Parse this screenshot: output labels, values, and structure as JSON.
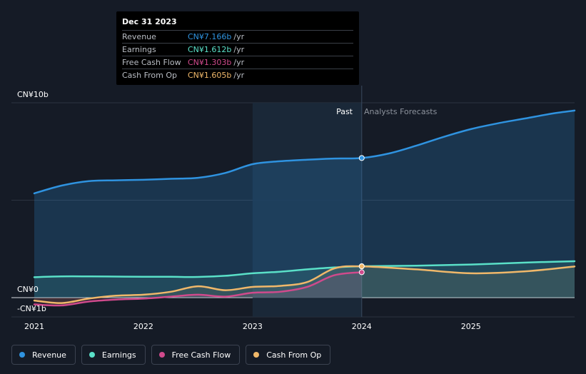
{
  "chart_data": {
    "type": "line",
    "y_unit_label_top": "CN¥10b",
    "y_unit_label_zero": "CN¥0",
    "y_unit_label_neg": "-CN¥1b",
    "ylim": [
      -1,
      10
    ],
    "xlim": [
      2021.0,
      2025.95
    ],
    "x_ticks": [
      {
        "value": 2021,
        "label": "2021"
      },
      {
        "value": 2022,
        "label": "2022"
      },
      {
        "value": 2023,
        "label": "2023"
      },
      {
        "value": 2024,
        "label": "2024"
      },
      {
        "value": 2025,
        "label": "2025"
      }
    ],
    "past_label": "Past",
    "forecast_label": "Analysts Forecasts",
    "divider_x": 2024.0,
    "highlight_start_x": 2023.0,
    "series": [
      {
        "name": "Revenue",
        "color": "#2f93e0",
        "x": [
          2021.0,
          2021.25,
          2021.5,
          2021.75,
          2022.0,
          2022.25,
          2022.5,
          2022.75,
          2023.0,
          2023.25,
          2023.5,
          2023.75,
          2024.0,
          2024.25,
          2024.5,
          2024.75,
          2025.0,
          2025.25,
          2025.5,
          2025.75,
          2025.95
        ],
        "values": [
          5.35,
          5.75,
          5.98,
          6.02,
          6.05,
          6.1,
          6.15,
          6.4,
          6.85,
          7.0,
          7.08,
          7.14,
          7.166,
          7.4,
          7.8,
          8.25,
          8.65,
          8.95,
          9.2,
          9.45,
          9.6
        ]
      },
      {
        "name": "Earnings",
        "color": "#5ae0c8",
        "x": [
          2021.0,
          2021.25,
          2021.5,
          2021.75,
          2022.0,
          2022.25,
          2022.5,
          2022.75,
          2023.0,
          2023.25,
          2023.5,
          2023.75,
          2024.0,
          2024.5,
          2025.0,
          2025.5,
          2025.95
        ],
        "values": [
          1.05,
          1.09,
          1.09,
          1.08,
          1.07,
          1.07,
          1.06,
          1.12,
          1.25,
          1.33,
          1.45,
          1.55,
          1.612,
          1.64,
          1.7,
          1.8,
          1.87
        ]
      },
      {
        "name": "Free Cash Flow",
        "color": "#d04a8c",
        "x": [
          2021.0,
          2021.25,
          2021.5,
          2021.75,
          2022.0,
          2022.25,
          2022.5,
          2022.75,
          2023.0,
          2023.25,
          2023.5,
          2023.75,
          2024.0
        ],
        "values": [
          -0.35,
          -0.4,
          -0.2,
          -0.1,
          -0.05,
          0.05,
          0.15,
          0.05,
          0.25,
          0.3,
          0.55,
          1.15,
          1.303
        ]
      },
      {
        "name": "Cash From Op",
        "color": "#f0b86a",
        "x": [
          2021.0,
          2021.25,
          2021.5,
          2021.75,
          2022.0,
          2022.25,
          2022.5,
          2022.75,
          2023.0,
          2023.25,
          2023.5,
          2023.75,
          2024.0,
          2024.5,
          2025.0,
          2025.5,
          2025.95
        ],
        "values": [
          -0.15,
          -0.28,
          -0.05,
          0.1,
          0.15,
          0.3,
          0.58,
          0.38,
          0.55,
          0.6,
          0.8,
          1.5,
          1.605,
          1.45,
          1.25,
          1.35,
          1.6
        ]
      }
    ]
  },
  "tooltip": {
    "date": "Dec 31 2023",
    "unit": "/yr",
    "rows": [
      {
        "name": "Revenue",
        "value": "CN¥7.166b",
        "color": "#2f93e0"
      },
      {
        "name": "Earnings",
        "value": "CN¥1.612b",
        "color": "#5ae0c8"
      },
      {
        "name": "Free Cash Flow",
        "value": "CN¥1.303b",
        "color": "#d04a8c"
      },
      {
        "name": "Cash From Op",
        "value": "CN¥1.605b",
        "color": "#f0b86a"
      }
    ]
  },
  "legend": [
    {
      "label": "Revenue",
      "color": "#2f93e0"
    },
    {
      "label": "Earnings",
      "color": "#5ae0c8"
    },
    {
      "label": "Free Cash Flow",
      "color": "#d04a8c"
    },
    {
      "label": "Cash From Op",
      "color": "#f0b86a"
    }
  ]
}
